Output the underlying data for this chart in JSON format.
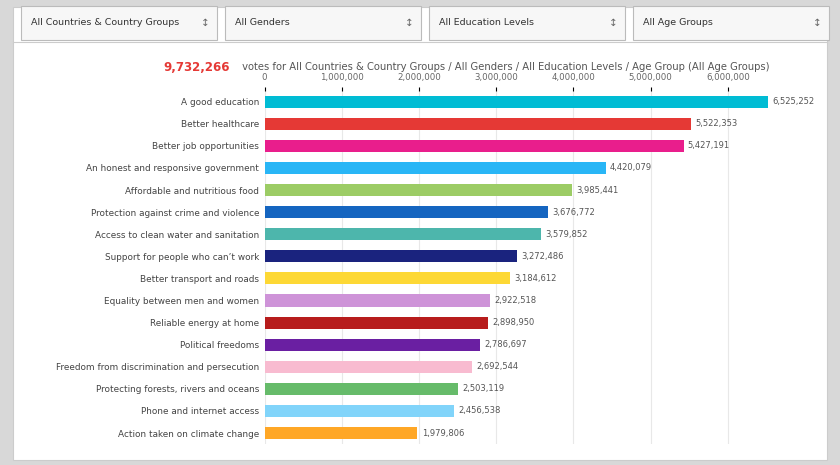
{
  "title_red": "9,732,266",
  "title_black": " votes for All Countries & Country Groups / All Genders / All Education Levels / Age Group (All Age Groups)",
  "categories": [
    "A good education",
    "Better healthcare",
    "Better job opportunities",
    "An honest and responsive government",
    "Affordable and nutritious food",
    "Protection against crime and violence",
    "Access to clean water and sanitation",
    "Support for people who can’t work",
    "Better transport and roads",
    "Equality between men and women",
    "Reliable energy at home",
    "Political freedoms",
    "Freedom from discrimination and persecution",
    "Protecting forests, rivers and oceans",
    "Phone and internet access",
    "Action taken on climate change"
  ],
  "values": [
    6525252,
    5522353,
    5427191,
    4420079,
    3985441,
    3676772,
    3579852,
    3272486,
    3184612,
    2922518,
    2898950,
    2786697,
    2692544,
    2503119,
    2456538,
    1979806
  ],
  "value_labels": [
    "6,525,252",
    "5,522,353",
    "5,427,191",
    "4,420,079",
    "3,985,441",
    "3,676,772",
    "3,579,852",
    "3,272,486",
    "3,184,612",
    "2,922,518",
    "2,898,950",
    "2,786,697",
    "2,692,544",
    "2,503,119",
    "2,456,538",
    "1,979,806"
  ],
  "bar_colors": [
    "#00BCD4",
    "#E53935",
    "#E91E8C",
    "#29B6F6",
    "#9CCC65",
    "#1565C0",
    "#4DB6AC",
    "#1A237E",
    "#FDD835",
    "#CE93D8",
    "#B71C1C",
    "#6A1FA2",
    "#F8BBD0",
    "#66BB6A",
    "#81D4FA",
    "#FFA726"
  ],
  "dropdown_labels": [
    "All Countries & Country Groups",
    "All Genders",
    "All Education Levels",
    "All Age Groups"
  ],
  "xlim": [
    0,
    6800000
  ],
  "xticks": [
    0,
    1000000,
    2000000,
    3000000,
    4000000,
    5000000,
    6000000
  ],
  "xtick_labels": [
    "0",
    "1,000,000",
    "2,000,000",
    "3,000,000",
    "4,000,000",
    "5,000,000",
    "6,000,000"
  ],
  "outer_bg": "#d8d8d8",
  "grid_color": "#e8e8e8",
  "bar_height": 0.55
}
